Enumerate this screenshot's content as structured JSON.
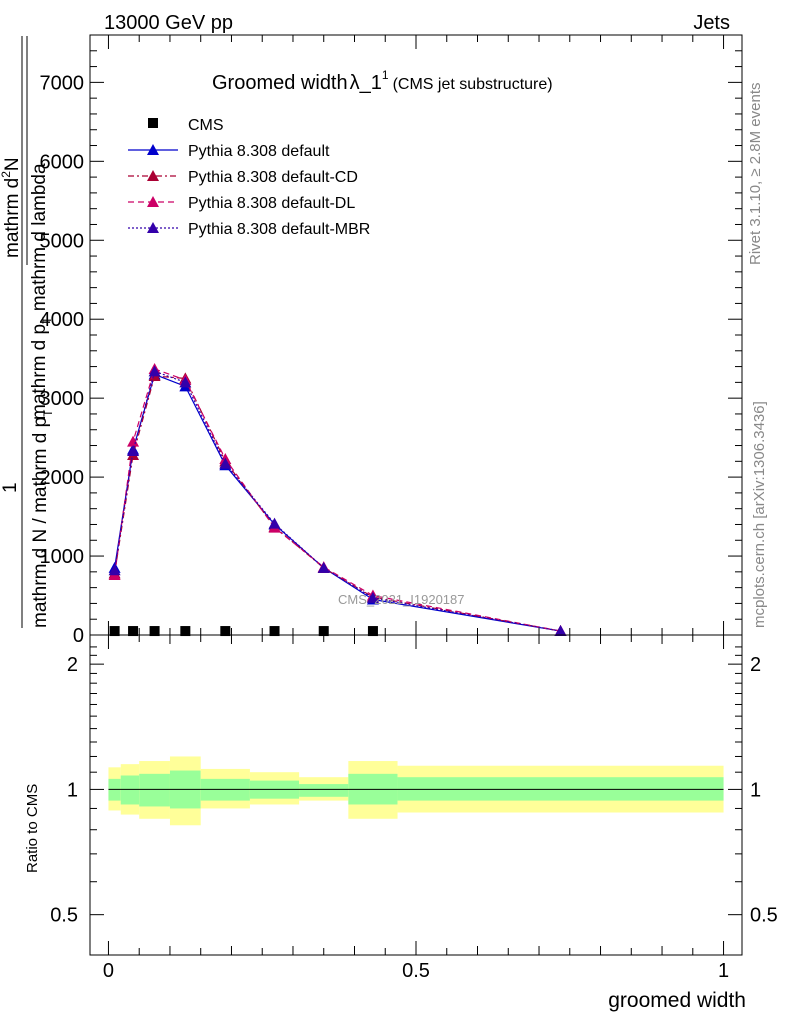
{
  "header": {
    "left": "13000 GeV pp",
    "right": "Jets"
  },
  "title": {
    "main": "Groomed width",
    "lambda": "λ_1",
    "sup": "1",
    "sub": "(CMS jet substructure)"
  },
  "side_labels": {
    "rivet": "Rivet 3.1.10, ≥ 2.8M events",
    "mcplots": "mcplots.cern.ch [arXiv:1306.3436]"
  },
  "watermark": "CMS_2021_I1920187",
  "top_ylabel": {
    "prefix": "1",
    "numerator": "mathrm d",
    "numerator_sup": "2",
    "numerator_tail": "N",
    "denominator": "mathrm d p",
    "denominator_sub": "T",
    "denominator_tail": " mathrm d lambda",
    "outer_denominator": "mathrm d N / mathrm d p",
    "outer_denominator_sub": "T"
  },
  "colors": {
    "cms": "#000000",
    "default": "#0000cc",
    "cd": "#aa0033",
    "dl": "#cc0066",
    "mbr": "#3300aa",
    "band_inner": "#99ff99",
    "band_outer": "#ffff99"
  },
  "chart_data": [
    {
      "type": "line",
      "panel": "main",
      "title": "Groomed width λ_1^1 (CMS jet substructure)",
      "xlabel": "groomed width",
      "xlim": [
        -0.03,
        1.03
      ],
      "ylim": [
        0,
        7600
      ],
      "yticks": [
        0,
        1000,
        2000,
        3000,
        4000,
        5000,
        6000,
        7000
      ],
      "ytick_labels": [
        "0",
        "1000",
        "2000",
        "3000",
        "4000",
        "5000",
        "6000",
        "7000"
      ],
      "grid": false,
      "legend_position": "top-left",
      "x": [
        0.01,
        0.04,
        0.075,
        0.125,
        0.19,
        0.27,
        0.35,
        0.43,
        0.735
      ],
      "series": [
        {
          "name": "CMS",
          "style": "marker-square",
          "color_key": "cms",
          "values": [
            12,
            12,
            12,
            12,
            12,
            12,
            12,
            12,
            null
          ]
        },
        {
          "name": "Pythia 8.308 default",
          "style": "solid",
          "color_key": "default",
          "values": [
            850,
            2350,
            3300,
            3150,
            2150,
            1400,
            850,
            450,
            50
          ]
        },
        {
          "name": "Pythia 8.308 default-CD",
          "style": "dashdot",
          "color_key": "cd",
          "values": [
            780,
            2280,
            3280,
            3250,
            2200,
            1370,
            850,
            480,
            50
          ]
        },
        {
          "name": "Pythia 8.308 default-DL",
          "style": "dashed",
          "color_key": "dl",
          "values": [
            760,
            2450,
            3370,
            3230,
            2230,
            1360,
            860,
            500,
            50
          ]
        },
        {
          "name": "Pythia 8.308 default-MBR",
          "style": "dotted",
          "color_key": "mbr",
          "values": [
            820,
            2330,
            3340,
            3200,
            2170,
            1410,
            850,
            470,
            50
          ]
        }
      ]
    },
    {
      "type": "area",
      "panel": "ratio",
      "ylabel": "Ratio to CMS",
      "xlabel": "groomed width",
      "xlim": [
        -0.03,
        1.03
      ],
      "ylim": [
        0.4,
        2.35
      ],
      "yscale": "log",
      "yticks": [
        0.5,
        1,
        2
      ],
      "ytick_labels": [
        "0.5",
        "1",
        "2"
      ],
      "xticks": [
        0,
        0.5,
        1
      ],
      "xtick_labels": [
        "0",
        "0.5",
        "1"
      ],
      "bins": [
        {
          "x0": 0.0,
          "x1": 0.02,
          "inner": [
            0.94,
            1.06
          ],
          "outer": [
            0.89,
            1.13
          ]
        },
        {
          "x0": 0.02,
          "x1": 0.05,
          "inner": [
            0.92,
            1.08
          ],
          "outer": [
            0.87,
            1.15
          ]
        },
        {
          "x0": 0.05,
          "x1": 0.1,
          "inner": [
            0.91,
            1.09
          ],
          "outer": [
            0.85,
            1.17
          ]
        },
        {
          "x0": 0.1,
          "x1": 0.15,
          "inner": [
            0.9,
            1.11
          ],
          "outer": [
            0.82,
            1.2
          ]
        },
        {
          "x0": 0.15,
          "x1": 0.23,
          "inner": [
            0.94,
            1.06
          ],
          "outer": [
            0.9,
            1.12
          ]
        },
        {
          "x0": 0.23,
          "x1": 0.31,
          "inner": [
            0.95,
            1.05
          ],
          "outer": [
            0.92,
            1.1
          ]
        },
        {
          "x0": 0.31,
          "x1": 0.39,
          "inner": [
            0.96,
            1.03
          ],
          "outer": [
            0.94,
            1.07
          ]
        },
        {
          "x0": 0.39,
          "x1": 0.47,
          "inner": [
            0.92,
            1.09
          ],
          "outer": [
            0.85,
            1.17
          ]
        },
        {
          "x0": 0.47,
          "x1": 1.0,
          "inner": [
            0.94,
            1.07
          ],
          "outer": [
            0.88,
            1.14
          ]
        }
      ]
    }
  ]
}
